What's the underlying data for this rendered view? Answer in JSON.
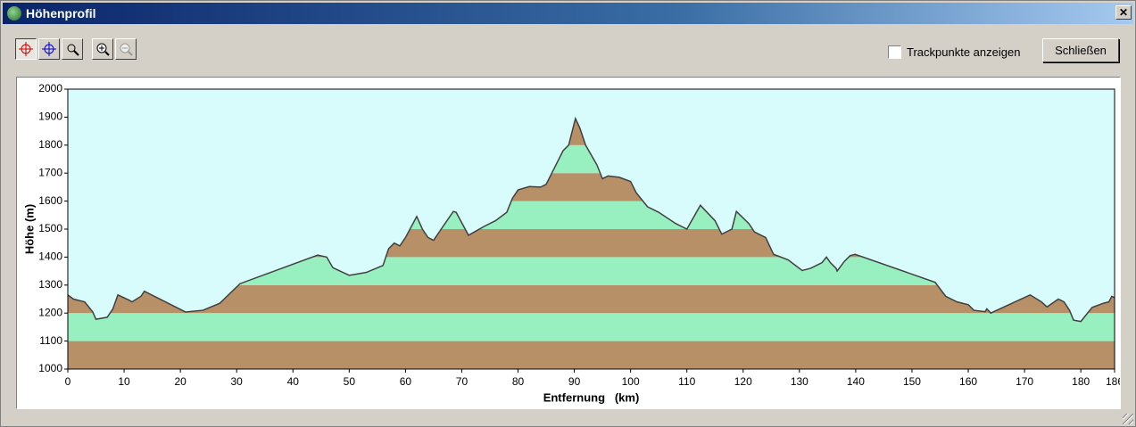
{
  "window": {
    "title": "Höhenprofil",
    "checkbox_label": "Trackpunkte anzeigen",
    "close_button": "Schließen"
  },
  "chart_data": {
    "type": "area",
    "x_label": "Entfernung   (km)",
    "y_label": "Höhe (m)",
    "x": [
      0,
      1,
      3,
      4.4,
      5,
      7,
      8,
      8.9,
      11,
      11.4,
      13,
      13.6,
      20.9,
      24,
      27,
      30.6,
      44.4,
      46,
      47.1,
      50,
      53,
      56,
      57,
      58,
      59,
      60,
      62,
      63,
      64,
      65,
      66,
      68.5,
      69,
      71.2,
      74,
      76,
      78,
      79,
      80,
      82,
      84,
      85,
      86,
      88,
      89,
      89.5,
      90.2,
      91,
      92,
      94,
      95,
      96,
      98,
      100,
      101,
      103,
      105,
      108,
      110,
      112.4,
      115,
      116.2,
      118,
      118.8,
      121,
      122,
      123,
      124,
      125.4,
      128,
      130.5,
      132,
      134,
      134.8,
      135.5,
      136.5,
      136.7,
      138,
      139,
      139.9,
      154.1,
      156,
      158,
      160,
      161,
      163,
      163.3,
      164,
      171,
      173,
      174,
      176,
      177,
      178,
      178.7,
      180,
      182,
      184,
      185,
      185.5,
      186
    ],
    "values": [
      1265,
      1250,
      1240,
      1205,
      1178,
      1185,
      1215,
      1265,
      1245,
      1240,
      1260,
      1278,
      1204,
      1210,
      1235,
      1305,
      1407,
      1400,
      1362,
      1335,
      1345,
      1370,
      1430,
      1450,
      1440,
      1470,
      1545,
      1500,
      1470,
      1460,
      1490,
      1563,
      1560,
      1478,
      1510,
      1530,
      1560,
      1610,
      1640,
      1652,
      1650,
      1660,
      1700,
      1780,
      1800,
      1840,
      1895,
      1860,
      1800,
      1730,
      1680,
      1690,
      1685,
      1670,
      1630,
      1580,
      1560,
      1520,
      1500,
      1585,
      1530,
      1482,
      1500,
      1563,
      1520,
      1490,
      1480,
      1470,
      1410,
      1390,
      1352,
      1360,
      1380,
      1400,
      1380,
      1360,
      1350,
      1385,
      1405,
      1410,
      1310,
      1260,
      1240,
      1230,
      1210,
      1205,
      1215,
      1200,
      1265,
      1240,
      1222,
      1250,
      1240,
      1210,
      1175,
      1170,
      1220,
      1235,
      1240,
      1260,
      1255
    ],
    "xlim": [
      0,
      186
    ],
    "ylim": [
      1000,
      2000
    ],
    "xticks": [
      0,
      10,
      20,
      30,
      40,
      50,
      60,
      70,
      80,
      90,
      100,
      110,
      120,
      130,
      140,
      150,
      160,
      170,
      180,
      186
    ],
    "yticks": [
      1000,
      1100,
      1200,
      1300,
      1400,
      1500,
      1600,
      1700,
      1800,
      1900,
      2000
    ],
    "background": "#d8fcfc",
    "band_colors": [
      "#b89068",
      "#98f0c0"
    ],
    "line_color": "#404040"
  }
}
